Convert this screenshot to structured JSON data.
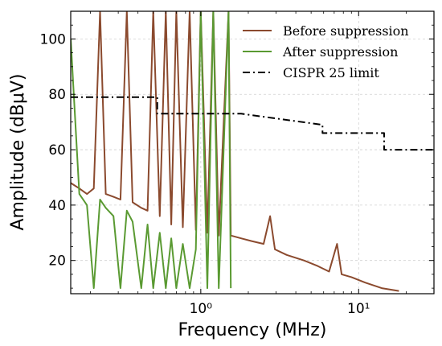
{
  "chart_data": {
    "type": "line",
    "xlabel": "Frequency (MHz)",
    "ylabel": "Amplitude (dBμV)",
    "xscale": "log",
    "xlim": [
      0.15,
      30
    ],
    "ylim": [
      8,
      110
    ],
    "x_tick_labels": [
      {
        "value": 1,
        "label": "10⁰"
      },
      {
        "value": 10,
        "label": "10¹"
      }
    ],
    "y_ticks": [
      20,
      40,
      60,
      80,
      100
    ],
    "grid": true,
    "legend_position": "top-right",
    "series": [
      {
        "name": "Before suppression",
        "color": "#8b4a2e",
        "points": [
          [
            0.15,
            48
          ],
          [
            0.17,
            46
          ],
          [
            0.19,
            44
          ],
          [
            0.21,
            46
          ],
          [
            0.23,
            110
          ],
          [
            0.25,
            44
          ],
          [
            0.28,
            43
          ],
          [
            0.31,
            42
          ],
          [
            0.34,
            110
          ],
          [
            0.37,
            41
          ],
          [
            0.42,
            39
          ],
          [
            0.46,
            38
          ],
          [
            0.5,
            110
          ],
          [
            0.55,
            36
          ],
          [
            0.6,
            110
          ],
          [
            0.65,
            33
          ],
          [
            0.7,
            110
          ],
          [
            0.77,
            32
          ],
          [
            0.85,
            110
          ],
          [
            0.93,
            31
          ],
          [
            1.0,
            110
          ],
          [
            1.1,
            30
          ],
          [
            1.2,
            110
          ],
          [
            1.3,
            29
          ],
          [
            1.5,
            110
          ],
          [
            1.55,
            29
          ],
          [
            1.8,
            28
          ],
          [
            2.1,
            27
          ],
          [
            2.5,
            26
          ],
          [
            2.75,
            36
          ],
          [
            2.95,
            24
          ],
          [
            3.5,
            22
          ],
          [
            4.5,
            20
          ],
          [
            5.5,
            18
          ],
          [
            6.5,
            16
          ],
          [
            7.3,
            26
          ],
          [
            7.8,
            15
          ],
          [
            9,
            14
          ],
          [
            11,
            12
          ],
          [
            14,
            10
          ],
          [
            18,
            9
          ]
        ]
      },
      {
        "name": "After suppression",
        "color": "#5a9a32",
        "points": [
          [
            0.15,
            100
          ],
          [
            0.17,
            44
          ],
          [
            0.19,
            40
          ],
          [
            0.21,
            10
          ],
          [
            0.23,
            42
          ],
          [
            0.25,
            39
          ],
          [
            0.28,
            36
          ],
          [
            0.31,
            10
          ],
          [
            0.34,
            38
          ],
          [
            0.37,
            34
          ],
          [
            0.42,
            10
          ],
          [
            0.46,
            33
          ],
          [
            0.5,
            10
          ],
          [
            0.55,
            30
          ],
          [
            0.6,
            10
          ],
          [
            0.65,
            28
          ],
          [
            0.7,
            10
          ],
          [
            0.77,
            26
          ],
          [
            0.85,
            10
          ],
          [
            0.93,
            24
          ],
          [
            1.0,
            110
          ],
          [
            1.1,
            10
          ],
          [
            1.2,
            110
          ],
          [
            1.3,
            10
          ],
          [
            1.5,
            110
          ],
          [
            1.55,
            10
          ]
        ]
      },
      {
        "name": "CISPR 25 limit",
        "color": "#000000",
        "style": "dash-dot",
        "points": [
          [
            0.15,
            79
          ],
          [
            0.53,
            79
          ],
          [
            0.53,
            73
          ],
          [
            1.8,
            73
          ],
          [
            5.9,
            69
          ],
          [
            5.9,
            66
          ],
          [
            14.5,
            66
          ],
          [
            14.5,
            60
          ],
          [
            30,
            60
          ]
        ]
      }
    ]
  }
}
